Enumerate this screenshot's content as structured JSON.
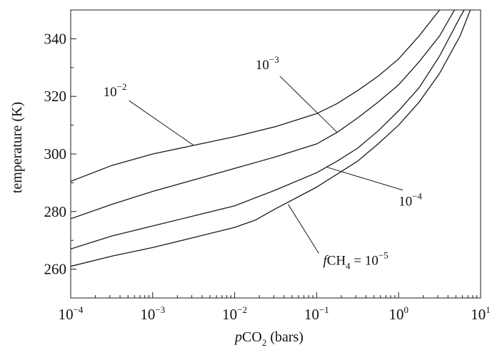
{
  "chart_data": {
    "type": "line",
    "title": "",
    "xlabel": {
      "italic": "p",
      "main": "CO",
      "sub": "2",
      "rest": " (bars)"
    },
    "ylabel": "temperature (K)",
    "xscale": "log",
    "xlim": [
      0.0001,
      10
    ],
    "ylim": [
      250,
      350
    ],
    "grid": false,
    "x_ticks": [
      {
        "base": "10",
        "exp": "−4",
        "value": 0.0001
      },
      {
        "base": "10",
        "exp": "−3",
        "value": 0.001
      },
      {
        "base": "10",
        "exp": "−2",
        "value": 0.01
      },
      {
        "base": "10",
        "exp": "−1",
        "value": 0.1
      },
      {
        "base": "10",
        "exp": "0",
        "value": 1
      },
      {
        "base": "10",
        "exp": "1",
        "value": 10
      }
    ],
    "y_ticks": [
      "260",
      "280",
      "300",
      "320",
      "340"
    ],
    "y_tick_values": [
      260,
      280,
      300,
      320,
      340
    ],
    "series": [
      {
        "id": "fch4-1e-2",
        "label": {
          "base": "10",
          "exp": "−2"
        },
        "points": [
          [
            0.0001,
            290.5
          ],
          [
            0.000316,
            296
          ],
          [
            0.001,
            300
          ],
          [
            0.00316,
            303
          ],
          [
            0.01,
            306
          ],
          [
            0.0316,
            309.5
          ],
          [
            0.1,
            314
          ],
          [
            0.178,
            317.5
          ],
          [
            0.316,
            322
          ],
          [
            0.562,
            327
          ],
          [
            1,
            333
          ],
          [
            1.78,
            341
          ],
          [
            3.16,
            350
          ]
        ]
      },
      {
        "id": "fch4-1e-3",
        "label": {
          "base": "10",
          "exp": "−3"
        },
        "points": [
          [
            0.0001,
            277.5
          ],
          [
            0.000316,
            282.5
          ],
          [
            0.001,
            287
          ],
          [
            0.00316,
            291
          ],
          [
            0.01,
            295
          ],
          [
            0.0316,
            299
          ],
          [
            0.1,
            303.5
          ],
          [
            0.178,
            307.5
          ],
          [
            0.316,
            312.5
          ],
          [
            0.562,
            318
          ],
          [
            1,
            324
          ],
          [
            1.78,
            332
          ],
          [
            3.16,
            341
          ],
          [
            4.8,
            350
          ]
        ]
      },
      {
        "id": "fch4-1e-4",
        "label": {
          "base": "10",
          "exp": "−4"
        },
        "points": [
          [
            0.0001,
            267
          ],
          [
            0.000316,
            271.5
          ],
          [
            0.001,
            275
          ],
          [
            0.00316,
            278.5
          ],
          [
            0.01,
            282
          ],
          [
            0.0316,
            287.5
          ],
          [
            0.1,
            293.5
          ],
          [
            0.178,
            297.5
          ],
          [
            0.316,
            302
          ],
          [
            0.562,
            308
          ],
          [
            1,
            315
          ],
          [
            1.78,
            323
          ],
          [
            3.16,
            334
          ],
          [
            5.62,
            347.5
          ],
          [
            6.3,
            350
          ]
        ]
      },
      {
        "id": "fch4-1e-5",
        "label": {
          "italic": "f",
          "main": "CH",
          "sub": "4",
          "rest": " = 10",
          "exp": "−5"
        },
        "points": [
          [
            0.0001,
            261
          ],
          [
            0.000316,
            264.5
          ],
          [
            0.001,
            267.5
          ],
          [
            0.00316,
            271
          ],
          [
            0.01,
            274.5
          ],
          [
            0.0178,
            277
          ],
          [
            0.0316,
            281
          ],
          [
            0.1,
            288.5
          ],
          [
            0.178,
            293
          ],
          [
            0.316,
            297.5
          ],
          [
            0.562,
            303.5
          ],
          [
            1,
            310
          ],
          [
            1.78,
            318
          ],
          [
            3.16,
            328
          ],
          [
            5.62,
            341
          ],
          [
            7.5,
            350
          ]
        ]
      }
    ],
    "annotations": [
      {
        "series": "fch4-1e-2",
        "anchor": [
          0.00316,
          303
        ],
        "text_pos": [
          0.00025,
          320
        ]
      },
      {
        "series": "fch4-1e-3",
        "anchor": [
          0.178,
          307.5
        ],
        "text_pos": [
          0.018,
          329.5
        ]
      },
      {
        "series": "fch4-1e-4",
        "anchor": [
          0.13,
          295.5
        ],
        "text_pos": [
          1.0,
          282
        ]
      },
      {
        "series": "fch4-1e-5",
        "anchor": [
          0.045,
          282.5
        ],
        "text_pos": [
          0.12,
          261.5
        ]
      }
    ]
  }
}
